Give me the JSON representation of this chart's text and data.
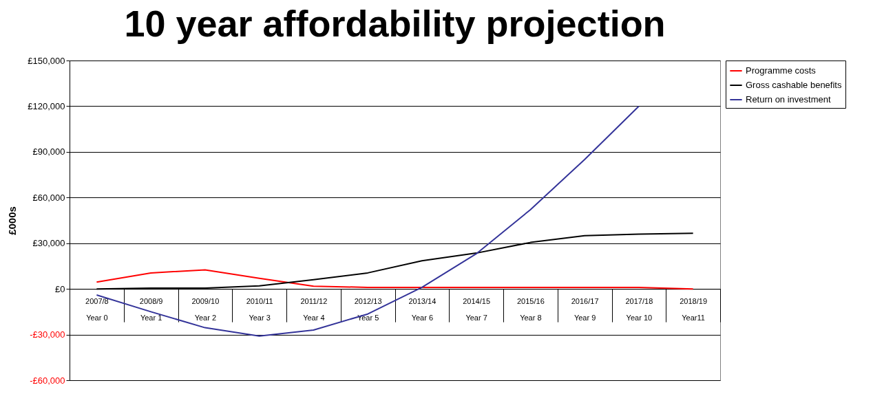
{
  "chart_data": {
    "type": "line",
    "title": "10 year affordability projection",
    "ylabel": "£000s",
    "categories": [
      "2007/8\nYear 0",
      "2008/9\nYear 1",
      "2009/10\nYear 2",
      "2010/11\nYear 3",
      "2011/12\nYear 4",
      "2012/13\nYear 5",
      "2013/14\nYear 6",
      "2014/15\nYear 7",
      "2015/16\nYear 8",
      "2016/17\nYear 9",
      "2017/18\nYear 10",
      "2018/19\nYear11"
    ],
    "series": [
      {
        "name": "Programme costs",
        "color": "#ff0000",
        "values": [
          4500,
          10500,
          12500,
          7000,
          1800,
          1000,
          1000,
          1000,
          1000,
          1000,
          1000,
          0
        ]
      },
      {
        "name": "Gross cashable benefits",
        "color": "#000000",
        "values": [
          0,
          500,
          500,
          2000,
          6000,
          10500,
          18500,
          23500,
          30500,
          35000,
          36000,
          36500
        ]
      },
      {
        "name": "Return on investment",
        "color": "#333399",
        "values": [
          -4000,
          -15000,
          -25500,
          -31000,
          -27000,
          -16500,
          1000,
          23000,
          52000,
          85000,
          120000,
          null
        ]
      }
    ],
    "ylim": [
      -60000,
      150000
    ],
    "yticks": [
      {
        "value": -60000,
        "label": "-£60,000"
      },
      {
        "value": -30000,
        "label": "-£30,000"
      },
      {
        "value": 0,
        "label": "£0"
      },
      {
        "value": 30000,
        "label": "£30,000"
      },
      {
        "value": 60000,
        "label": "£60,000"
      },
      {
        "value": 90000,
        "label": "£90,000"
      },
      {
        "value": 120000,
        "label": "£120,000"
      },
      {
        "value": 150000,
        "label": "£150,000"
      }
    ],
    "grid": "y",
    "legend": "right",
    "marker": "none",
    "line_style": "solid"
  }
}
